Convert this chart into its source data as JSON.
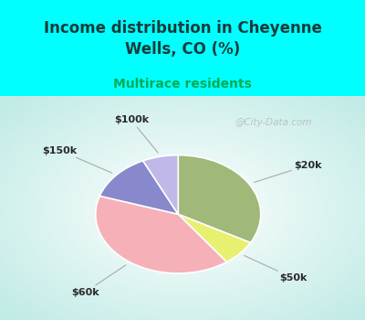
{
  "title": "Income distribution in Cheyenne\nWells, CO (%)",
  "subtitle": "Multirace residents",
  "title_color": "#1a3a3a",
  "subtitle_color": "#00aa55",
  "background_cyan": "#00ffff",
  "labels": [
    "$20k",
    "$50k",
    "$60k",
    "$150k",
    "$100k"
  ],
  "sizes": [
    33,
    7,
    40,
    13,
    7
  ],
  "colors": [
    "#a0b878",
    "#e8f070",
    "#f5b0b8",
    "#8888cc",
    "#c0b8e8"
  ],
  "startangle": 90,
  "watermark": "@City-Data.com",
  "title_fontsize": 12,
  "subtitle_fontsize": 10
}
